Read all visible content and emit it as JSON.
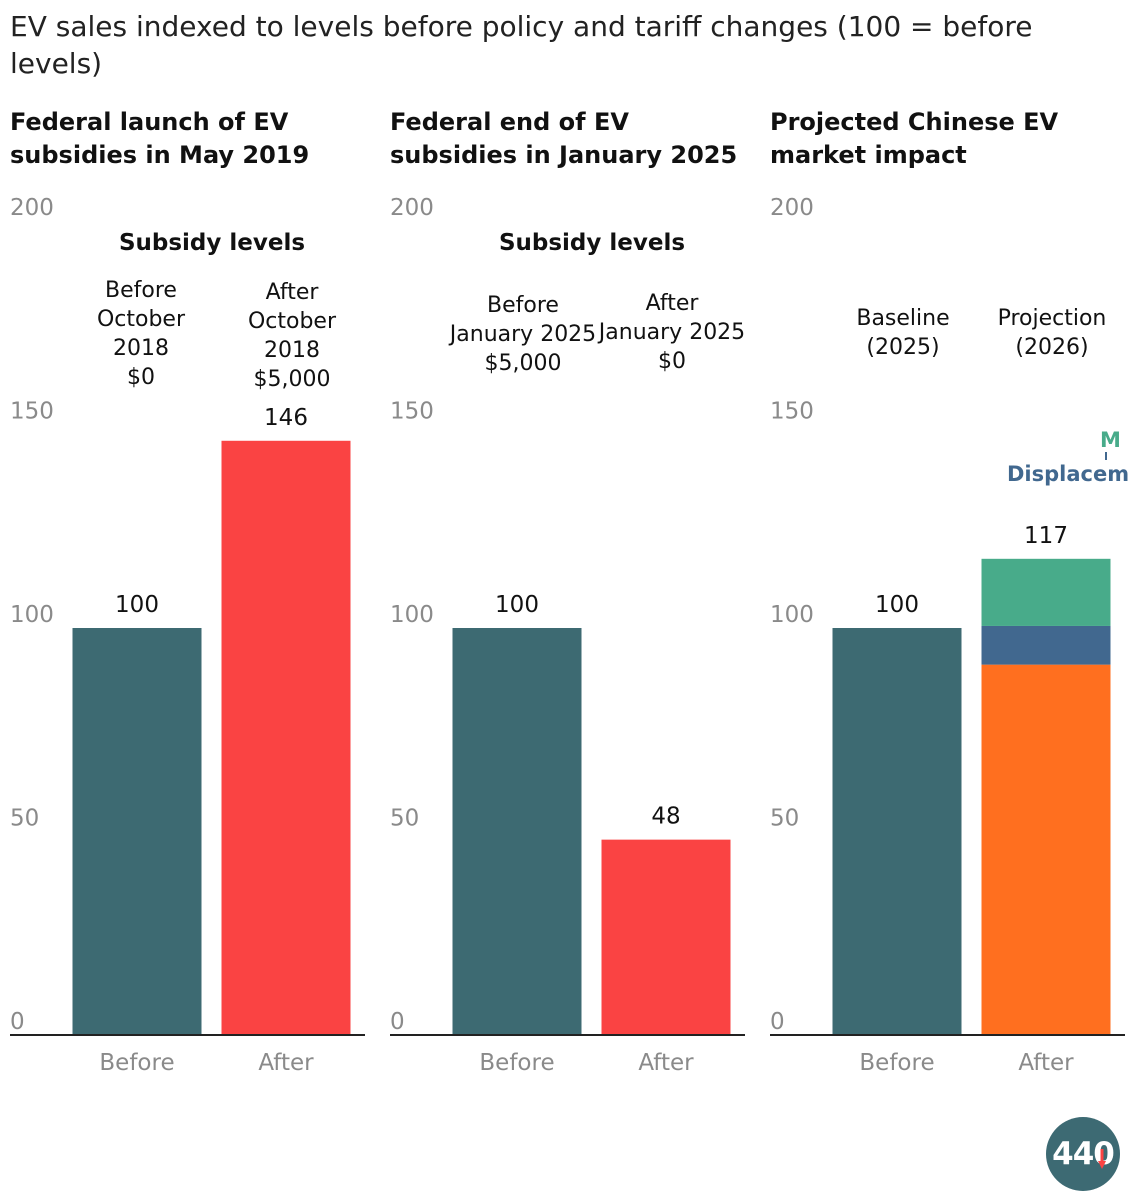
{
  "title": "EV sales indexed to levels before policy and tariff changes (100 = before levels)",
  "logo_text": "440",
  "colors": {
    "before": "#3d6a72",
    "after_red": "#fa4343",
    "orange": "#ff6f1f",
    "blue": "#41688f",
    "teal": "#48ab8a",
    "axis": "#222222",
    "tick": "#8a8a8a"
  },
  "chart_data": [
    {
      "type": "bar",
      "title": "Federal launch of EV subsidies in May 2019",
      "ylim": [
        0,
        200
      ],
      "yticks": [
        "0",
        "50",
        "100",
        "150",
        "200"
      ],
      "categories": [
        "Before",
        "After"
      ],
      "values": [
        100,
        146
      ],
      "value_labels": [
        "100",
        "146"
      ],
      "annotation_title": "Subsidy levels",
      "annotations": [
        [
          "Before",
          "October",
          "2018",
          "$0"
        ],
        [
          "After",
          "October",
          "2018",
          "$5,000"
        ]
      ]
    },
    {
      "type": "bar",
      "title": "Federal end of EV subsidies in January 2025",
      "ylim": [
        0,
        200
      ],
      "yticks": [
        "0",
        "50",
        "100",
        "150",
        "200"
      ],
      "categories": [
        "Before",
        "After"
      ],
      "values": [
        100,
        48
      ],
      "value_labels": [
        "100",
        "48"
      ],
      "annotation_title": "Subsidy levels",
      "annotations": [
        [
          "Before",
          "January 2025",
          "$5,000"
        ],
        [
          "After",
          "January 2025",
          "$0"
        ]
      ]
    },
    {
      "type": "bar",
      "title": "Projected Chinese EV market impact",
      "ylim": [
        0,
        200
      ],
      "yticks": [
        "0",
        "50",
        "100",
        "150",
        "200"
      ],
      "categories": [
        "Before",
        "After"
      ],
      "values": [
        100,
        117
      ],
      "value_labels": [
        "100",
        "117"
      ],
      "annotation_title": "",
      "annotations": [
        [
          "Baseline",
          "(2025)"
        ],
        [
          "Projection",
          "(2026)"
        ]
      ],
      "stack_after": [
        {
          "name": "",
          "value": 91
        },
        {
          "name": "Displacem",
          "value": 9.5
        },
        {
          "name": "M",
          "value": 16.5
        }
      ]
    }
  ]
}
